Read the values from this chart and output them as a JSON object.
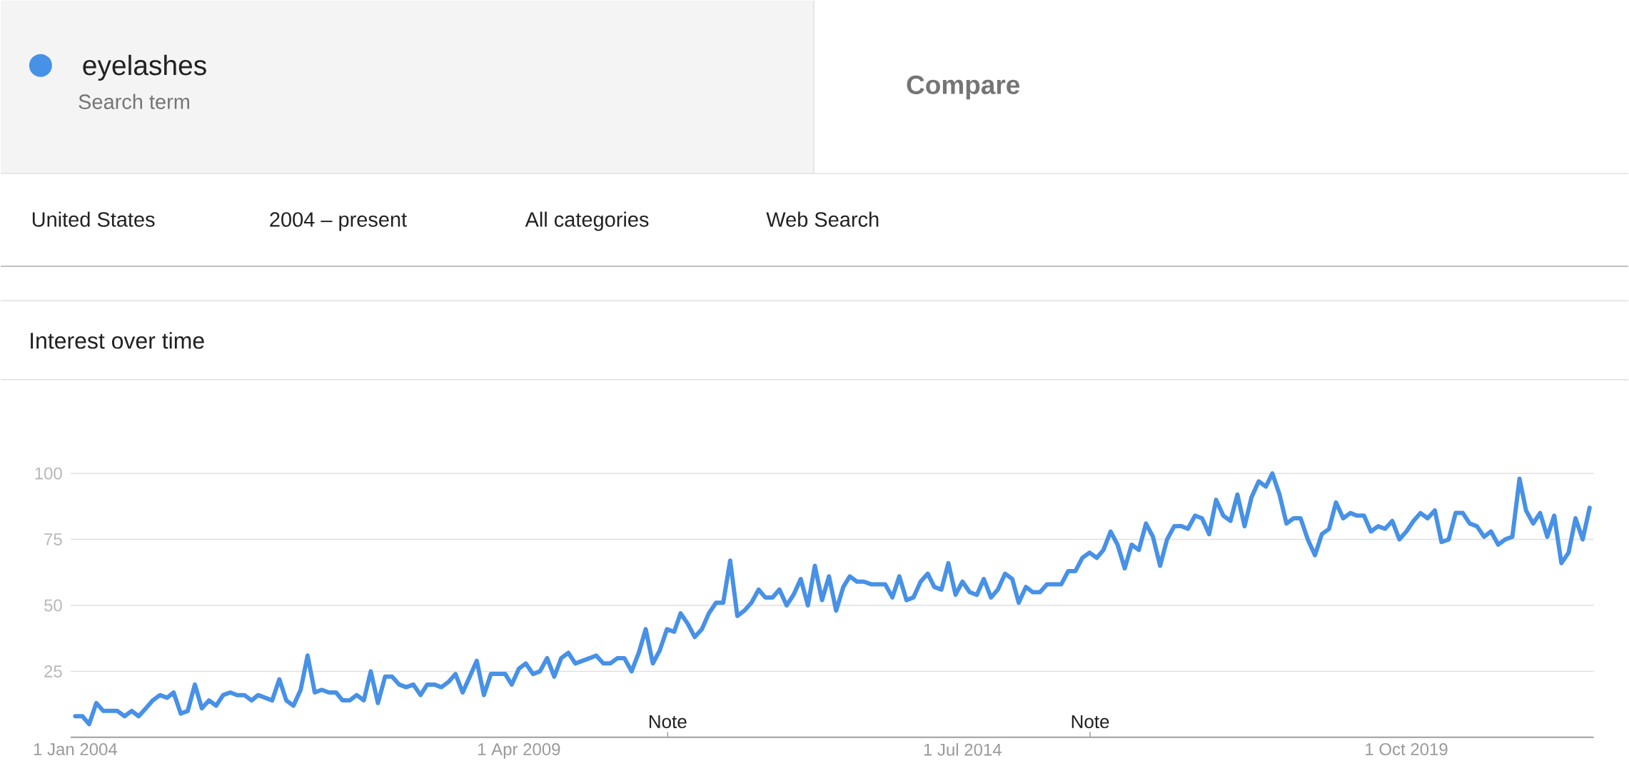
{
  "chart_data": {
    "type": "line",
    "title": "Interest over time",
    "annotations": [
      "Search term",
      "Compare",
      "United States",
      "2004 – present",
      "All categories",
      "Web Search",
      "Note",
      "Note"
    ],
    "x": [
      "2004-01",
      "2004-02",
      "2004-03",
      "2004-04",
      "2004-05",
      "2004-06",
      "2004-07",
      "2004-08",
      "2004-09",
      "2004-10",
      "2004-11",
      "2004-12",
      "2005-01",
      "2005-02",
      "2005-03",
      "2005-04",
      "2005-05",
      "2005-06",
      "2005-07",
      "2005-08",
      "2005-09",
      "2005-10",
      "2005-11",
      "2005-12",
      "2006-01",
      "2006-02",
      "2006-03",
      "2006-04",
      "2006-05",
      "2006-06",
      "2006-07",
      "2006-08",
      "2006-09",
      "2006-10",
      "2006-11",
      "2006-12",
      "2007-01",
      "2007-02",
      "2007-03",
      "2007-04",
      "2007-05",
      "2007-06",
      "2007-07",
      "2007-08",
      "2007-09",
      "2007-10",
      "2007-11",
      "2007-12",
      "2008-01",
      "2008-02",
      "2008-03",
      "2008-04",
      "2008-05",
      "2008-06",
      "2008-07",
      "2008-08",
      "2008-09",
      "2008-10",
      "2008-11",
      "2008-12",
      "2009-01",
      "2009-02",
      "2009-03",
      "2009-04",
      "2009-05",
      "2009-06",
      "2009-07",
      "2009-08",
      "2009-09",
      "2009-10",
      "2009-11",
      "2009-12",
      "2010-01",
      "2010-02",
      "2010-03",
      "2010-04",
      "2010-05",
      "2010-06",
      "2010-07",
      "2010-08",
      "2010-09",
      "2010-10",
      "2010-11",
      "2010-12",
      "2011-01",
      "2011-02",
      "2011-03",
      "2011-04",
      "2011-05",
      "2011-06",
      "2011-07",
      "2011-08",
      "2011-09",
      "2011-10",
      "2011-11",
      "2011-12",
      "2012-01",
      "2012-02",
      "2012-03",
      "2012-04",
      "2012-05",
      "2012-06",
      "2012-07",
      "2012-08",
      "2012-09",
      "2012-10",
      "2012-11",
      "2012-12",
      "2013-01",
      "2013-02",
      "2013-03",
      "2013-04",
      "2013-05",
      "2013-06",
      "2013-07",
      "2013-08",
      "2013-09",
      "2013-10",
      "2013-11",
      "2013-12",
      "2014-01",
      "2014-02",
      "2014-03",
      "2014-04",
      "2014-05",
      "2014-06",
      "2014-07",
      "2014-08",
      "2014-09",
      "2014-10",
      "2014-11",
      "2014-12",
      "2015-01",
      "2015-02",
      "2015-03",
      "2015-04",
      "2015-05",
      "2015-06",
      "2015-07",
      "2015-08",
      "2015-09",
      "2015-10",
      "2015-11",
      "2015-12",
      "2016-01",
      "2016-02",
      "2016-03",
      "2016-04",
      "2016-05",
      "2016-06",
      "2016-07",
      "2016-08",
      "2016-09",
      "2016-10",
      "2016-11",
      "2016-12",
      "2017-01",
      "2017-02",
      "2017-03",
      "2017-04",
      "2017-05",
      "2017-06",
      "2017-07",
      "2017-08",
      "2017-09",
      "2017-10",
      "2017-11",
      "2017-12",
      "2018-01",
      "2018-02",
      "2018-03",
      "2018-04",
      "2018-05",
      "2018-06",
      "2018-07",
      "2018-08",
      "2018-09",
      "2018-10",
      "2018-11",
      "2018-12",
      "2019-01",
      "2019-02",
      "2019-03",
      "2019-04",
      "2019-05",
      "2019-06",
      "2019-07",
      "2019-08",
      "2019-09",
      "2019-10",
      "2019-11",
      "2019-12",
      "2020-01",
      "2020-02",
      "2020-03",
      "2020-04",
      "2020-05",
      "2020-06",
      "2020-07",
      "2020-08",
      "2020-09",
      "2020-10",
      "2020-11",
      "2020-12",
      "2021-01",
      "2021-02",
      "2021-03",
      "2021-04",
      "2021-05",
      "2021-06",
      "2021-07",
      "2021-08",
      "2021-09",
      "2021-10",
      "2021-11",
      "2021-12"
    ],
    "series": [
      {
        "name": "eyelashes",
        "color": "#4791e6",
        "values": [
          8,
          8,
          5,
          13,
          10,
          10,
          10,
          8,
          10,
          8,
          11,
          14,
          16,
          15,
          17,
          9,
          10,
          20,
          11,
          14,
          12,
          16,
          17,
          16,
          16,
          14,
          16,
          15,
          14,
          22,
          14,
          12,
          18,
          31,
          17,
          18,
          17,
          17,
          14,
          14,
          16,
          14,
          25,
          13,
          23,
          23,
          20,
          19,
          20,
          16,
          20,
          20,
          19,
          21,
          24,
          17,
          23,
          29,
          16,
          24,
          24,
          24,
          20,
          26,
          28,
          24,
          25,
          30,
          23,
          30,
          32,
          28,
          29,
          30,
          31,
          28,
          28,
          30,
          30,
          25,
          32,
          41,
          28,
          33,
          41,
          40,
          47,
          43,
          38,
          41,
          47,
          51,
          51,
          67,
          46,
          48,
          51,
          56,
          53,
          53,
          56,
          50,
          54,
          60,
          50,
          65,
          52,
          61,
          48,
          57,
          61,
          59,
          59,
          58,
          58,
          58,
          53,
          61,
          52,
          53,
          59,
          62,
          57,
          56,
          66,
          54,
          59,
          55,
          54,
          60,
          53,
          56,
          62,
          60,
          51,
          57,
          55,
          55,
          58,
          58,
          58,
          63,
          63,
          68,
          70,
          68,
          71,
          78,
          73,
          64,
          73,
          71,
          81,
          76,
          65,
          75,
          80,
          80,
          79,
          84,
          83,
          77,
          90,
          84,
          82,
          92,
          80,
          91,
          97,
          95,
          100,
          92,
          81,
          83,
          83,
          75,
          69,
          77,
          79,
          89,
          83,
          85,
          84,
          84,
          78,
          80,
          79,
          82,
          75,
          78,
          82,
          85,
          83,
          86,
          74,
          75,
          85,
          85,
          81,
          80,
          76,
          78,
          73,
          75,
          76,
          98,
          86,
          81,
          85,
          76,
          84,
          66,
          70,
          83,
          75,
          87
        ]
      }
    ],
    "xlim": [
      "2003-12-12",
      "2021-12-19"
    ],
    "xticks": [
      {
        "value": "2004-01-01",
        "label": "1 Jan 2004"
      },
      {
        "value": "2009-04-01",
        "label": "1 Apr 2009"
      },
      {
        "value": "2014-07-01",
        "label": "1 Jul 2014"
      },
      {
        "value": "2019-10-01",
        "label": "1 Oct 2019"
      }
    ],
    "ylim": [
      0,
      100
    ],
    "yticks": [
      25,
      50,
      75,
      100
    ],
    "grid": "y",
    "legend": "top left"
  }
}
